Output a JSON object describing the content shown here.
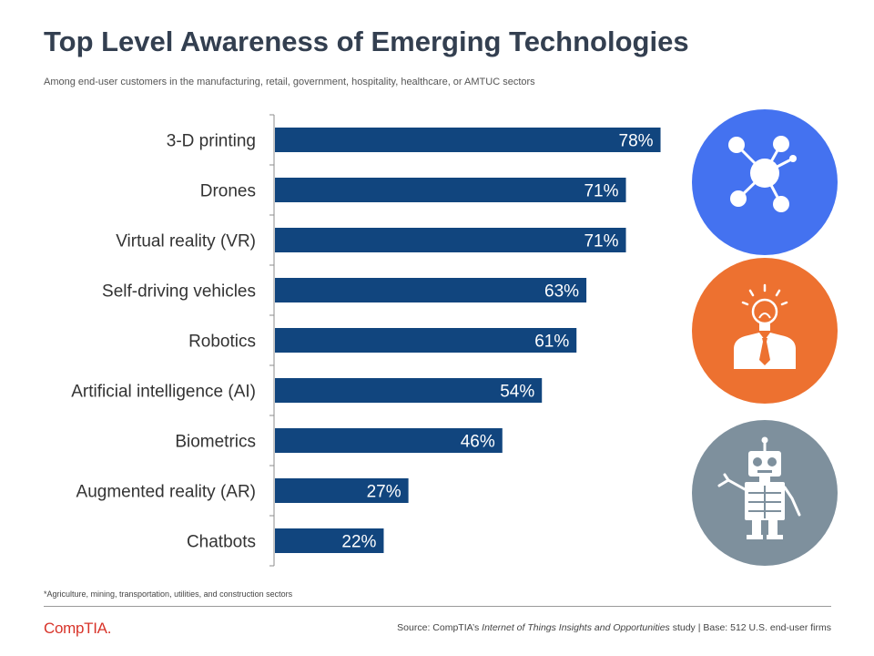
{
  "title": "Top Level Awareness of Emerging Technologies",
  "subtitle": "Among end-user customers in the manufacturing, retail, government,  hospitality, healthcare, or AMTUC sectors",
  "footnote": "*Agriculture, mining, transportation, utilities, and construction sectors",
  "logo": "CompTIA.",
  "source": {
    "prefix": "Source: CompTIA’s ",
    "study_title": "Internet of Things Insights and Opportunities",
    "suffix": " study | Base: 512 U.S. end-user firms"
  },
  "icons": [
    {
      "name": "network-icon",
      "color": "#4472f0"
    },
    {
      "name": "lightbulb-person-icon",
      "color": "#ed7130"
    },
    {
      "name": "robot-icon",
      "color": "#7e909d"
    }
  ],
  "colors": {
    "bar": "#11457e",
    "axis": "#8c8c8c"
  },
  "chart_data": {
    "type": "bar",
    "orientation": "horizontal",
    "title": "Top Level Awareness of Emerging Technologies",
    "xlabel": "",
    "ylabel": "",
    "xlim": [
      0,
      100
    ],
    "grid": false,
    "legend": "none",
    "categories": [
      "3-D printing",
      "Drones",
      "Virtual reality (VR)",
      "Self-driving vehicles",
      "Robotics",
      "Artificial intelligence (AI)",
      "Biometrics",
      "Augmented reality (AR)",
      "Chatbots"
    ],
    "values": [
      78,
      71,
      71,
      63,
      61,
      54,
      46,
      27,
      22
    ],
    "value_labels": [
      "78%",
      "71%",
      "71%",
      "63%",
      "61%",
      "54%",
      "46%",
      "27%",
      "22%"
    ]
  }
}
